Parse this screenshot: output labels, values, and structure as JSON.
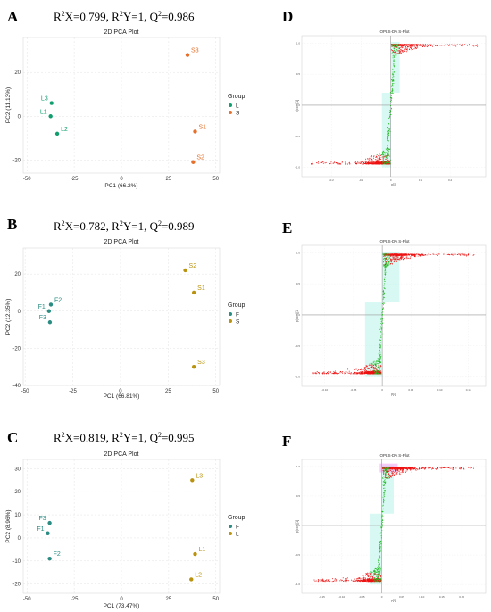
{
  "colors": {
    "green": "#119e6f",
    "orange": "#e5702b",
    "teal": "#2a8c82",
    "olive": "#b9930f",
    "splot_red": "#ee1111",
    "splot_green": "#22bb22",
    "splot_cyan_band": "#a9f2e5",
    "splot_magenta_band": "#ee99ee",
    "zero_line": "#999999"
  },
  "panels": [
    {
      "letter": "A",
      "stats": {
        "r2x": "0.799",
        "r2y": "1",
        "q2": "0.986"
      }
    },
    {
      "letter": "B",
      "stats": {
        "r2x": "0.782",
        "r2y": "1",
        "q2": "0.989"
      }
    },
    {
      "letter": "C",
      "stats": {
        "r2x": "0.819",
        "r2y": "1",
        "q2": "0.995"
      }
    },
    {
      "letter": "D"
    },
    {
      "letter": "E"
    },
    {
      "letter": "F"
    }
  ],
  "chart_data": [
    {
      "type": "scatter",
      "panel": "A",
      "title": "2D PCA Plot",
      "xlabel": "PC1 (66.2%)",
      "ylabel": "PC2 (11.13%)",
      "xlim": [
        -52,
        52
      ],
      "ylim": [
        -26,
        36
      ],
      "xticks": [
        -50,
        -25,
        0,
        25,
        50
      ],
      "yticks": [
        -20,
        0,
        20
      ],
      "grid": true,
      "legend_title": "Group",
      "legend_position": "right",
      "series": [
        {
          "name": "L",
          "color": "#119e6f",
          "points": [
            {
              "label": "L3",
              "x": -37,
              "y": 6
            },
            {
              "label": "L1",
              "x": -37.5,
              "y": 0
            },
            {
              "label": "L2",
              "x": -34,
              "y": -8
            }
          ]
        },
        {
          "name": "S",
          "color": "#e5702b",
          "points": [
            {
              "label": "S3",
              "x": 35,
              "y": 28
            },
            {
              "label": "S1",
              "x": 39,
              "y": -7
            },
            {
              "label": "S2",
              "x": 38,
              "y": -21
            }
          ]
        }
      ]
    },
    {
      "type": "scatter",
      "panel": "B",
      "title": "2D PCA Plot",
      "xlabel": "PC1 (66.81%)",
      "ylabel": "PC2 (12.35%)",
      "xlim": [
        -51,
        52
      ],
      "ylim": [
        -40,
        34
      ],
      "xticks": [
        -50,
        -25,
        0,
        25,
        50
      ],
      "yticks": [
        -40,
        -20,
        0,
        20
      ],
      "grid": true,
      "legend_title": "Group",
      "legend_position": "right",
      "series": [
        {
          "name": "F",
          "color": "#2a8c82",
          "points": [
            {
              "label": "F2",
              "x": -36.5,
              "y": 3.5
            },
            {
              "label": "F1",
              "x": -37.5,
              "y": 0
            },
            {
              "label": "F3",
              "x": -37,
              "y": -6
            }
          ]
        },
        {
          "name": "S",
          "color": "#b9930f",
          "points": [
            {
              "label": "S2",
              "x": 34,
              "y": 22
            },
            {
              "label": "S1",
              "x": 38.5,
              "y": 10
            },
            {
              "label": "S3",
              "x": 38.5,
              "y": -30
            }
          ]
        }
      ]
    },
    {
      "type": "scatter",
      "panel": "C",
      "title": "2D PCA Plot",
      "xlabel": "PC1 (73.47%)",
      "ylabel": "PC2 (8.96%)",
      "xlim": [
        -52,
        52
      ],
      "ylim": [
        -24,
        34
      ],
      "xticks": [
        -50,
        -25,
        0,
        25,
        50
      ],
      "yticks": [
        -20,
        -10,
        0,
        10,
        20,
        30
      ],
      "grid": true,
      "legend_title": "Group",
      "legend_position": "right",
      "series": [
        {
          "name": "F",
          "color": "#2a8c82",
          "points": [
            {
              "label": "F3",
              "x": -38,
              "y": 6.5
            },
            {
              "label": "F1",
              "x": -39,
              "y": 2
            },
            {
              "label": "F2",
              "x": -38,
              "y": -9
            }
          ]
        },
        {
          "name": "L",
          "color": "#b9930f",
          "points": [
            {
              "label": "L3",
              "x": 37.5,
              "y": 25
            },
            {
              "label": "L1",
              "x": 39,
              "y": -7
            },
            {
              "label": "L2",
              "x": 37,
              "y": -18
            }
          ]
        }
      ]
    },
    {
      "type": "scatter",
      "panel": "D",
      "title": "OPLS-DA S-Plot",
      "xlabel": "p[1]",
      "ylabel": "p(corr)[1]",
      "xlim": [
        -0.3,
        0.32
      ],
      "ylim": [
        -1.15,
        1.12
      ],
      "xticks": [
        -0.2,
        -0.1,
        0,
        0.1,
        0.2
      ],
      "yticks": [
        -1,
        -0.5,
        0,
        0.5,
        1
      ],
      "tick_labels_x": [
        "-0.2",
        "-0.1",
        "0",
        "0.1",
        "0.2"
      ],
      "tick_labels_y": [
        "-1.0",
        "-0.5",
        "0",
        "0.5",
        "1.0"
      ],
      "grid": true,
      "bands": [
        "cyan"
      ],
      "gen": {
        "xMin": -0.27,
        "xMax": 0.3,
        "seed": 11
      }
    },
    {
      "type": "scatter",
      "panel": "E",
      "title": "OPLS-DA S-Plot",
      "xlabel": "p[1]",
      "ylabel": "p(corr)[1]",
      "xlim": [
        -0.14,
        0.18
      ],
      "ylim": [
        -1.15,
        1.12
      ],
      "xticks": [
        -0.1,
        -0.05,
        0,
        0.05,
        0.1,
        0.15
      ],
      "yticks": [
        -1,
        -0.5,
        0,
        0.5,
        1
      ],
      "tick_labels_x": [
        "-0.10",
        "-0.05",
        "0",
        "0.05",
        "0.10",
        "0.15"
      ],
      "tick_labels_y": [
        "-1.0",
        "-0.5",
        "0",
        "0.5",
        "1.0"
      ],
      "grid": true,
      "bands": [
        "cyan"
      ],
      "gen": {
        "xMin": -0.12,
        "xMax": 0.16,
        "seed": 23
      }
    },
    {
      "type": "scatter",
      "panel": "F",
      "title": "OPLS-DA S-Plot",
      "xlabel": "p[1]",
      "ylabel": "p(corr)[1]",
      "xlim": [
        -0.2,
        0.26
      ],
      "ylim": [
        -1.15,
        1.12
      ],
      "xticks": [
        -0.15,
        -0.1,
        -0.05,
        0,
        0.05,
        0.1,
        0.15,
        0.2
      ],
      "yticks": [
        -1,
        -0.5,
        0,
        0.5,
        1
      ],
      "tick_labels_x": [
        "-0.15",
        "-0.10",
        "-0.05",
        "0",
        "0.05",
        "0.10",
        "0.15",
        "0.20"
      ],
      "tick_labels_y": [
        "-1.0",
        "-0.5",
        "0",
        "0.5",
        "1.0"
      ],
      "grid": true,
      "bands": [
        "cyan",
        "magenta"
      ],
      "gen": {
        "xMin": -0.17,
        "xMax": 0.23,
        "seed": 37
      }
    }
  ]
}
